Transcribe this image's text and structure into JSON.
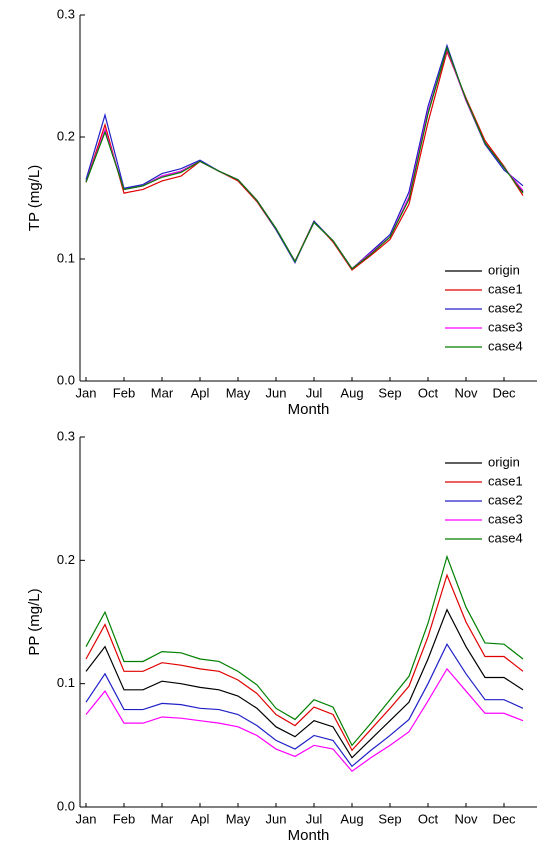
{
  "chart_data": [
    {
      "type": "line",
      "x_label": "Month",
      "y_label": "TP (mg/L)",
      "legend": "lower right",
      "categories": [
        "Jan",
        null,
        "Feb",
        null,
        "Mar",
        null,
        "Apl",
        null,
        "May",
        null,
        "Jun",
        null,
        "Jul",
        null,
        "Aug",
        null,
        "Sep",
        null,
        "Oct",
        null,
        "Nov",
        null,
        "Dec",
        null
      ],
      "ylim": [
        0,
        0.3
      ],
      "yticks": [
        {
          "value": 0,
          "label": "0.0"
        },
        0.1,
        0.2,
        0.3
      ],
      "series": [
        {
          "name": "origin",
          "color": "#000000",
          "values": [
            0.163,
            0.205,
            0.157,
            0.16,
            0.168,
            0.172,
            0.18,
            0.172,
            0.165,
            0.148,
            0.125,
            0.098,
            0.13,
            0.115,
            0.092,
            0.105,
            0.118,
            0.15,
            0.22,
            0.272,
            0.23,
            0.195,
            0.175,
            0.155
          ]
        },
        {
          "name": "case1",
          "color": "#e00000",
          "values": [
            0.163,
            0.21,
            0.154,
            0.157,
            0.164,
            0.168,
            0.18,
            0.172,
            0.164,
            0.147,
            0.124,
            0.098,
            0.131,
            0.114,
            0.091,
            0.103,
            0.116,
            0.145,
            0.212,
            0.27,
            0.232,
            0.197,
            0.176,
            0.152
          ]
        },
        {
          "name": "case2",
          "color": "#2020c8",
          "values": [
            0.165,
            0.218,
            0.158,
            0.161,
            0.17,
            0.174,
            0.181,
            0.172,
            0.165,
            0.148,
            0.124,
            0.097,
            0.131,
            0.115,
            0.092,
            0.106,
            0.12,
            0.155,
            0.225,
            0.275,
            0.23,
            0.194,
            0.173,
            0.16
          ]
        },
        {
          "name": "case3",
          "color": "#ff00ff",
          "values": [
            0.163,
            0.206,
            0.157,
            0.16,
            0.168,
            0.172,
            0.18,
            0.172,
            0.165,
            0.148,
            0.125,
            0.098,
            0.13,
            0.115,
            0.092,
            0.105,
            0.118,
            0.151,
            0.221,
            0.272,
            0.23,
            0.195,
            0.175,
            0.156
          ]
        },
        {
          "name": "case4",
          "color": "#008000",
          "values": [
            0.163,
            0.204,
            0.157,
            0.16,
            0.167,
            0.171,
            0.18,
            0.172,
            0.165,
            0.148,
            0.125,
            0.098,
            0.13,
            0.115,
            0.092,
            0.104,
            0.118,
            0.149,
            0.219,
            0.273,
            0.231,
            0.195,
            0.175,
            0.154
          ]
        }
      ]
    },
    {
      "type": "line",
      "x_label": "Month",
      "y_label": "PP (mg/L)",
      "legend": "upper right",
      "categories": [
        "Jan",
        null,
        "Feb",
        null,
        "Mar",
        null,
        "Apl",
        null,
        "May",
        null,
        "Jun",
        null,
        "Jul",
        null,
        "Aug",
        null,
        "Sep",
        null,
        "Oct",
        null,
        "Nov",
        null,
        "Dec",
        null
      ],
      "ylim": [
        0,
        0.3
      ],
      "yticks": [
        {
          "value": 0,
          "label": "0.0"
        },
        0.1,
        0.2,
        0.3
      ],
      "series": [
        {
          "name": "origin",
          "color": "#000000",
          "values": [
            0.11,
            0.13,
            0.095,
            0.095,
            0.102,
            0.1,
            0.097,
            0.095,
            0.09,
            0.08,
            0.065,
            0.057,
            0.07,
            0.065,
            0.04,
            0.055,
            0.07,
            0.085,
            0.12,
            0.16,
            0.13,
            0.105,
            0.105,
            0.095
          ]
        },
        {
          "name": "case1",
          "color": "#e00000",
          "values": [
            0.12,
            0.148,
            0.11,
            0.11,
            0.117,
            0.115,
            0.112,
            0.11,
            0.103,
            0.092,
            0.075,
            0.066,
            0.081,
            0.075,
            0.046,
            0.063,
            0.08,
            0.098,
            0.138,
            0.188,
            0.15,
            0.122,
            0.122,
            0.11
          ]
        },
        {
          "name": "case2",
          "color": "#2020c8",
          "values": [
            0.085,
            0.108,
            0.079,
            0.079,
            0.084,
            0.083,
            0.08,
            0.079,
            0.075,
            0.066,
            0.054,
            0.047,
            0.058,
            0.054,
            0.033,
            0.046,
            0.058,
            0.071,
            0.1,
            0.132,
            0.108,
            0.087,
            0.087,
            0.08
          ]
        },
        {
          "name": "case3",
          "color": "#ff00ff",
          "values": [
            0.075,
            0.094,
            0.068,
            0.068,
            0.073,
            0.072,
            0.07,
            0.068,
            0.065,
            0.058,
            0.047,
            0.041,
            0.05,
            0.047,
            0.029,
            0.04,
            0.05,
            0.061,
            0.086,
            0.112,
            0.094,
            0.076,
            0.076,
            0.07
          ]
        },
        {
          "name": "case4",
          "color": "#008000",
          "values": [
            0.13,
            0.158,
            0.118,
            0.118,
            0.126,
            0.125,
            0.12,
            0.118,
            0.11,
            0.099,
            0.08,
            0.071,
            0.087,
            0.081,
            0.05,
            0.068,
            0.087,
            0.106,
            0.149,
            0.203,
            0.162,
            0.133,
            0.132,
            0.12
          ]
        }
      ]
    }
  ]
}
